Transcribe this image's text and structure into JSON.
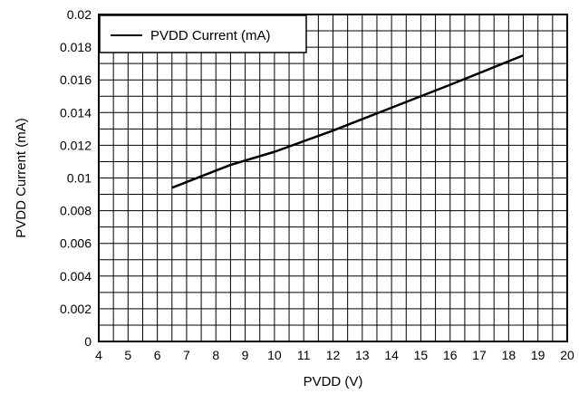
{
  "chart_data": {
    "type": "line",
    "title": "",
    "xlabel": "PVDD (V)",
    "ylabel": "PVDD Current (mA)",
    "xlim": [
      4,
      20
    ],
    "ylim": [
      0,
      0.02
    ],
    "x_ticks": [
      "4",
      "5",
      "6",
      "7",
      "8",
      "9",
      "10",
      "11",
      "12",
      "13",
      "14",
      "15",
      "16",
      "17",
      "18",
      "19",
      "20"
    ],
    "y_ticks": [
      "0",
      "0.002",
      "0.004",
      "0.006",
      "0.008",
      "0.01",
      "0.012",
      "0.014",
      "0.016",
      "0.018",
      "0.02"
    ],
    "grid": true,
    "legend_position": "top-left",
    "series": [
      {
        "name": "PVDD Current (mA)",
        "color": "#000000",
        "x": [
          6.5,
          7.5,
          8.5,
          10,
          12,
          14,
          16,
          18.5
        ],
        "y": [
          0.0094,
          0.0101,
          0.0108,
          0.0116,
          0.0129,
          0.0143,
          0.0157,
          0.0175
        ]
      }
    ]
  }
}
